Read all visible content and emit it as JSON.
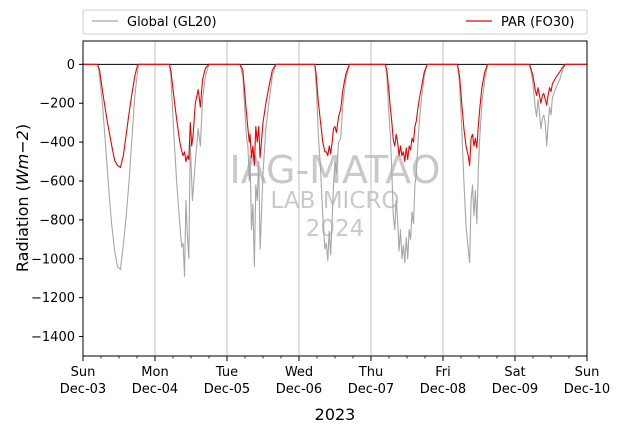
{
  "chart_data": {
    "type": "line",
    "title": "",
    "xlabel": "2023",
    "ylabel": "Radiation (Wm−2)",
    "ylabel_prefix": "Radiation (",
    "ylabel_unit": "Wm−2",
    "ylabel_suffix": ")",
    "ylim": [
      -1500,
      120
    ],
    "yticks": [
      0,
      -200,
      -400,
      -600,
      -800,
      -1000,
      -1200,
      -1400
    ],
    "xlim": [
      0,
      7
    ],
    "grid": "vertical",
    "legend_placement": "top",
    "x_ticks": [
      {
        "day": "Sun",
        "date": "Dec-03"
      },
      {
        "day": "Mon",
        "date": "Dec-04"
      },
      {
        "day": "Tue",
        "date": "Dec-05"
      },
      {
        "day": "Wed",
        "date": "Dec-06"
      },
      {
        "day": "Thu",
        "date": "Dec-07"
      },
      {
        "day": "Fri",
        "date": "Dec-08"
      },
      {
        "day": "Sat",
        "date": "Dec-09"
      },
      {
        "day": "Sun",
        "date": "Dec-10"
      }
    ],
    "series": [
      {
        "name": "Global (GL20)",
        "color": "#a6a6a6",
        "points": [
          [
            0.0,
            0
          ],
          [
            0.2,
            0
          ],
          [
            0.22,
            -30
          ],
          [
            0.27,
            -200
          ],
          [
            0.33,
            -500
          ],
          [
            0.37,
            -700
          ],
          [
            0.4,
            -830
          ],
          [
            0.44,
            -960
          ],
          [
            0.48,
            -1040
          ],
          [
            0.52,
            -1055
          ],
          [
            0.56,
            -930
          ],
          [
            0.6,
            -780
          ],
          [
            0.64,
            -600
          ],
          [
            0.68,
            -380
          ],
          [
            0.72,
            -160
          ],
          [
            0.76,
            -30
          ],
          [
            0.78,
            0
          ],
          [
            1.2,
            0
          ],
          [
            1.22,
            -60
          ],
          [
            1.26,
            -350
          ],
          [
            1.3,
            -600
          ],
          [
            1.34,
            -800
          ],
          [
            1.37,
            -940
          ],
          [
            1.39,
            -920
          ],
          [
            1.41,
            -1090
          ],
          [
            1.43,
            -700
          ],
          [
            1.45,
            -880
          ],
          [
            1.47,
            -1000
          ],
          [
            1.49,
            -400
          ],
          [
            1.52,
            -700
          ],
          [
            1.56,
            -500
          ],
          [
            1.6,
            -330
          ],
          [
            1.63,
            -420
          ],
          [
            1.66,
            -180
          ],
          [
            1.7,
            -60
          ],
          [
            1.75,
            0
          ],
          [
            2.18,
            0
          ],
          [
            2.22,
            -60
          ],
          [
            2.25,
            -250
          ],
          [
            2.27,
            -380
          ],
          [
            2.29,
            -420
          ],
          [
            2.31,
            -600
          ],
          [
            2.32,
            -470
          ],
          [
            2.34,
            -850
          ],
          [
            2.36,
            -720
          ],
          [
            2.38,
            -1040
          ],
          [
            2.4,
            -620
          ],
          [
            2.42,
            -700
          ],
          [
            2.44,
            -500
          ],
          [
            2.46,
            -950
          ],
          [
            2.5,
            -560
          ],
          [
            2.54,
            -330
          ],
          [
            2.58,
            -200
          ],
          [
            2.63,
            -60
          ],
          [
            2.68,
            0
          ],
          [
            3.22,
            0
          ],
          [
            3.24,
            -120
          ],
          [
            3.27,
            -370
          ],
          [
            3.3,
            -540
          ],
          [
            3.33,
            -780
          ],
          [
            3.36,
            -950
          ],
          [
            3.38,
            -920
          ],
          [
            3.4,
            -1010
          ],
          [
            3.42,
            -860
          ],
          [
            3.44,
            -980
          ],
          [
            3.46,
            -800
          ],
          [
            3.48,
            -620
          ],
          [
            3.5,
            -500
          ],
          [
            3.52,
            -560
          ],
          [
            3.55,
            -400
          ],
          [
            3.58,
            -380
          ],
          [
            3.61,
            -200
          ],
          [
            3.65,
            -80
          ],
          [
            3.7,
            0
          ],
          [
            4.2,
            0
          ],
          [
            4.22,
            -60
          ],
          [
            4.25,
            -260
          ],
          [
            4.27,
            -370
          ],
          [
            4.29,
            -560
          ],
          [
            4.31,
            -780
          ],
          [
            4.33,
            -850
          ],
          [
            4.35,
            -700
          ],
          [
            4.37,
            -800
          ],
          [
            4.39,
            -960
          ],
          [
            4.41,
            -850
          ],
          [
            4.43,
            -1000
          ],
          [
            4.45,
            -930
          ],
          [
            4.47,
            -1020
          ],
          [
            4.49,
            -890
          ],
          [
            4.51,
            -1000
          ],
          [
            4.53,
            -850
          ],
          [
            4.55,
            -900
          ],
          [
            4.57,
            -760
          ],
          [
            4.59,
            -820
          ],
          [
            4.61,
            -620
          ],
          [
            4.63,
            -560
          ],
          [
            4.65,
            -420
          ],
          [
            4.67,
            -300
          ],
          [
            4.7,
            -180
          ],
          [
            4.74,
            -60
          ],
          [
            4.78,
            0
          ],
          [
            5.2,
            0
          ],
          [
            5.23,
            -100
          ],
          [
            5.26,
            -330
          ],
          [
            5.29,
            -600
          ],
          [
            5.32,
            -830
          ],
          [
            5.35,
            -950
          ],
          [
            5.37,
            -1020
          ],
          [
            5.39,
            -700
          ],
          [
            5.41,
            -620
          ],
          [
            5.43,
            -780
          ],
          [
            5.45,
            -650
          ],
          [
            5.47,
            -820
          ],
          [
            5.49,
            -550
          ],
          [
            5.51,
            -380
          ],
          [
            5.54,
            -200
          ],
          [
            5.58,
            -80
          ],
          [
            5.62,
            0
          ],
          [
            6.2,
            0
          ],
          [
            6.22,
            -30
          ],
          [
            6.25,
            -100
          ],
          [
            6.28,
            -220
          ],
          [
            6.3,
            -270
          ],
          [
            6.32,
            -180
          ],
          [
            6.34,
            -250
          ],
          [
            6.36,
            -330
          ],
          [
            6.38,
            -280
          ],
          [
            6.4,
            -260
          ],
          [
            6.42,
            -300
          ],
          [
            6.44,
            -420
          ],
          [
            6.46,
            -310
          ],
          [
            6.48,
            -220
          ],
          [
            6.5,
            -260
          ],
          [
            6.52,
            -170
          ],
          [
            6.55,
            -140
          ],
          [
            6.58,
            -110
          ],
          [
            6.62,
            -80
          ],
          [
            6.66,
            -30
          ],
          [
            6.7,
            0
          ],
          [
            7.0,
            0
          ]
        ]
      },
      {
        "name": "PAR (FO30)",
        "color": "#ee0000",
        "points": [
          [
            0.0,
            0
          ],
          [
            0.2,
            0
          ],
          [
            0.23,
            -30
          ],
          [
            0.28,
            -160
          ],
          [
            0.34,
            -300
          ],
          [
            0.4,
            -420
          ],
          [
            0.44,
            -495
          ],
          [
            0.48,
            -520
          ],
          [
            0.52,
            -530
          ],
          [
            0.56,
            -470
          ],
          [
            0.6,
            -360
          ],
          [
            0.64,
            -250
          ],
          [
            0.68,
            -150
          ],
          [
            0.72,
            -60
          ],
          [
            0.76,
            0
          ],
          [
            1.2,
            0
          ],
          [
            1.22,
            -30
          ],
          [
            1.26,
            -160
          ],
          [
            1.3,
            -280
          ],
          [
            1.34,
            -390
          ],
          [
            1.37,
            -445
          ],
          [
            1.39,
            -470
          ],
          [
            1.41,
            -450
          ],
          [
            1.43,
            -500
          ],
          [
            1.45,
            -470
          ],
          [
            1.47,
            -490
          ],
          [
            1.49,
            -300
          ],
          [
            1.51,
            -420
          ],
          [
            1.53,
            -360
          ],
          [
            1.56,
            -200
          ],
          [
            1.6,
            -130
          ],
          [
            1.63,
            -220
          ],
          [
            1.66,
            -80
          ],
          [
            1.7,
            -20
          ],
          [
            1.75,
            0
          ],
          [
            2.18,
            0
          ],
          [
            2.22,
            -30
          ],
          [
            2.25,
            -160
          ],
          [
            2.27,
            -250
          ],
          [
            2.29,
            -330
          ],
          [
            2.31,
            -400
          ],
          [
            2.32,
            -360
          ],
          [
            2.34,
            -480
          ],
          [
            2.36,
            -420
          ],
          [
            2.38,
            -520
          ],
          [
            2.4,
            -320
          ],
          [
            2.42,
            -400
          ],
          [
            2.44,
            -320
          ],
          [
            2.46,
            -480
          ],
          [
            2.5,
            -300
          ],
          [
            2.54,
            -200
          ],
          [
            2.58,
            -120
          ],
          [
            2.63,
            -30
          ],
          [
            2.68,
            0
          ],
          [
            3.22,
            0
          ],
          [
            3.24,
            -60
          ],
          [
            3.27,
            -200
          ],
          [
            3.3,
            -300
          ],
          [
            3.33,
            -400
          ],
          [
            3.36,
            -450
          ],
          [
            3.38,
            -450
          ],
          [
            3.4,
            -470
          ],
          [
            3.42,
            -420
          ],
          [
            3.44,
            -460
          ],
          [
            3.46,
            -400
          ],
          [
            3.48,
            -330
          ],
          [
            3.5,
            -320
          ],
          [
            3.52,
            -350
          ],
          [
            3.55,
            -270
          ],
          [
            3.58,
            -230
          ],
          [
            3.61,
            -130
          ],
          [
            3.65,
            -50
          ],
          [
            3.7,
            0
          ],
          [
            4.2,
            0
          ],
          [
            4.22,
            -30
          ],
          [
            4.25,
            -140
          ],
          [
            4.27,
            -230
          ],
          [
            4.29,
            -300
          ],
          [
            4.31,
            -390
          ],
          [
            4.33,
            -420
          ],
          [
            4.35,
            -360
          ],
          [
            4.37,
            -400
          ],
          [
            4.39,
            -470
          ],
          [
            4.41,
            -420
          ],
          [
            4.43,
            -470
          ],
          [
            4.45,
            -450
          ],
          [
            4.47,
            -500
          ],
          [
            4.49,
            -430
          ],
          [
            4.51,
            -490
          ],
          [
            4.53,
            -420
          ],
          [
            4.55,
            -440
          ],
          [
            4.57,
            -380
          ],
          [
            4.59,
            -400
          ],
          [
            4.61,
            -320
          ],
          [
            4.63,
            -290
          ],
          [
            4.65,
            -230
          ],
          [
            4.67,
            -180
          ],
          [
            4.7,
            -120
          ],
          [
            4.74,
            -40
          ],
          [
            4.78,
            0
          ],
          [
            5.2,
            0
          ],
          [
            5.23,
            -60
          ],
          [
            5.26,
            -200
          ],
          [
            5.29,
            -330
          ],
          [
            5.32,
            -420
          ],
          [
            5.35,
            -470
          ],
          [
            5.37,
            -520
          ],
          [
            5.39,
            -380
          ],
          [
            5.41,
            -360
          ],
          [
            5.43,
            -420
          ],
          [
            5.45,
            -380
          ],
          [
            5.47,
            -430
          ],
          [
            5.49,
            -320
          ],
          [
            5.51,
            -230
          ],
          [
            5.54,
            -120
          ],
          [
            5.58,
            -40
          ],
          [
            5.62,
            0
          ],
          [
            6.2,
            0
          ],
          [
            6.22,
            -20
          ],
          [
            6.25,
            -60
          ],
          [
            6.28,
            -130
          ],
          [
            6.3,
            -160
          ],
          [
            6.32,
            -120
          ],
          [
            6.34,
            -160
          ],
          [
            6.36,
            -200
          ],
          [
            6.38,
            -160
          ],
          [
            6.4,
            -150
          ],
          [
            6.42,
            -180
          ],
          [
            6.44,
            -210
          ],
          [
            6.46,
            -160
          ],
          [
            6.48,
            -120
          ],
          [
            6.5,
            -140
          ],
          [
            6.52,
            -100
          ],
          [
            6.55,
            -80
          ],
          [
            6.58,
            -60
          ],
          [
            6.62,
            -40
          ],
          [
            6.66,
            -15
          ],
          [
            6.7,
            0
          ],
          [
            7.0,
            0
          ]
        ]
      }
    ]
  },
  "watermark": {
    "line1": "IAG-MATAO",
    "line2": "LAB MICRO",
    "line3": "2024"
  }
}
